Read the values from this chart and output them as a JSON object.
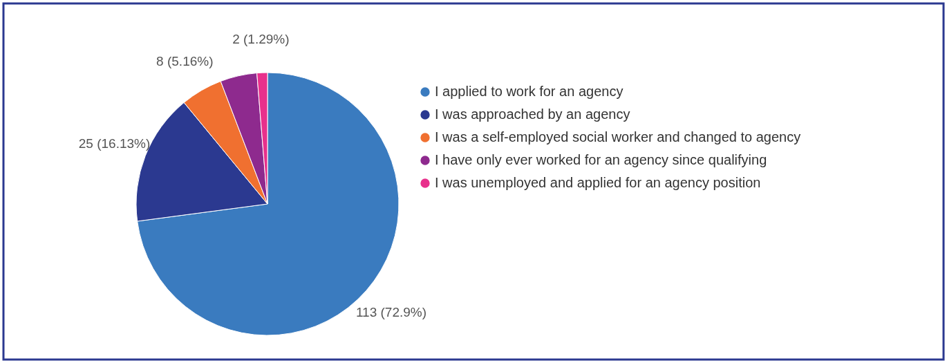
{
  "chart_data": {
    "type": "pie",
    "categories": [
      "I applied to work for an agency",
      "I was approached by an agency",
      "I was a self-employed social worker and changed to agency",
      "I have only ever worked for an agency since qualifying",
      "I was unemployed and applied for an agency position"
    ],
    "values": [
      113,
      25,
      8,
      7,
      2
    ],
    "value_labels": [
      "113 (72.9%)",
      "25 (16.13%)",
      "8 (5.16%)",
      null,
      "2 (1.29%)"
    ],
    "colors": [
      "#3a7bbf",
      "#2b3990",
      "#f07030",
      "#8e2a8e",
      "#e8308c"
    ],
    "legend": "right"
  }
}
